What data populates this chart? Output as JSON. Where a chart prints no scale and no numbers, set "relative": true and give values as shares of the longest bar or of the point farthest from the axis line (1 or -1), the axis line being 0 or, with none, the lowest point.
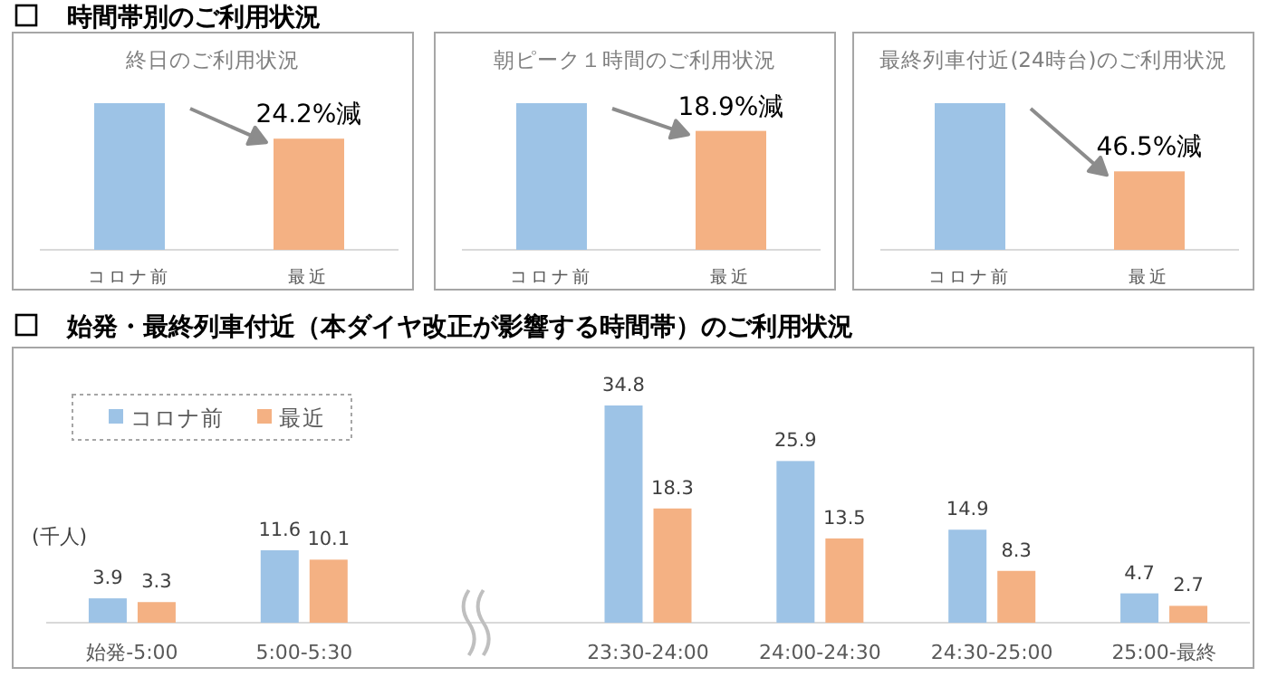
{
  "chart_data": [
    {
      "type": "bar",
      "relative": true,
      "title": "終日のご利用状況",
      "categories": [
        "コロナ前",
        "最近"
      ],
      "values": [
        1,
        0.758
      ],
      "colors": [
        "#9dc3e6",
        "#f4b183"
      ],
      "annotations": [
        "時間帯別のご利用状況",
        {
          "text": "24.2%減",
          "x": "最近",
          "y": 0.758
        }
      ]
    },
    {
      "type": "bar",
      "relative": true,
      "title": "朝ピーク１時間のご利用状況",
      "categories": [
        "コロナ前",
        "最近"
      ],
      "values": [
        1,
        0.811
      ],
      "colors": [
        "#9dc3e6",
        "#f4b183"
      ],
      "annotations": [
        {
          "text": "18.9%減",
          "x": "最近",
          "y": 0.811
        }
      ]
    },
    {
      "type": "bar",
      "relative": true,
      "title": "最終列車付近(24時台)のご利用状況",
      "categories": [
        "コロナ前",
        "最近"
      ],
      "values": [
        1,
        0.535
      ],
      "colors": [
        "#9dc3e6",
        "#f4b183"
      ],
      "annotations": [
        {
          "text": "46.5%減",
          "x": "最近",
          "y": 0.535
        }
      ]
    },
    {
      "type": "bar",
      "title": "始発・最終列車付近（本ダイヤ改正が影響する時間帯）のご利用状況",
      "ylabel": "(千人)",
      "categories": [
        "始発-5:00",
        "5:00-5:30",
        null,
        "23:30-24:00",
        "24:00-24:30",
        "24:30-25:00",
        "25:00-最終"
      ],
      "series": [
        {
          "name": "コロナ前",
          "color": "#9dc3e6",
          "values": [
            3.9,
            11.6,
            null,
            34.8,
            25.9,
            14.9,
            4.7
          ]
        },
        {
          "name": "最近",
          "color": "#f4b183",
          "values": [
            3.3,
            10.1,
            null,
            18.3,
            13.5,
            8.3,
            2.7
          ]
        }
      ],
      "data_labels": true,
      "legend": "top left"
    }
  ]
}
